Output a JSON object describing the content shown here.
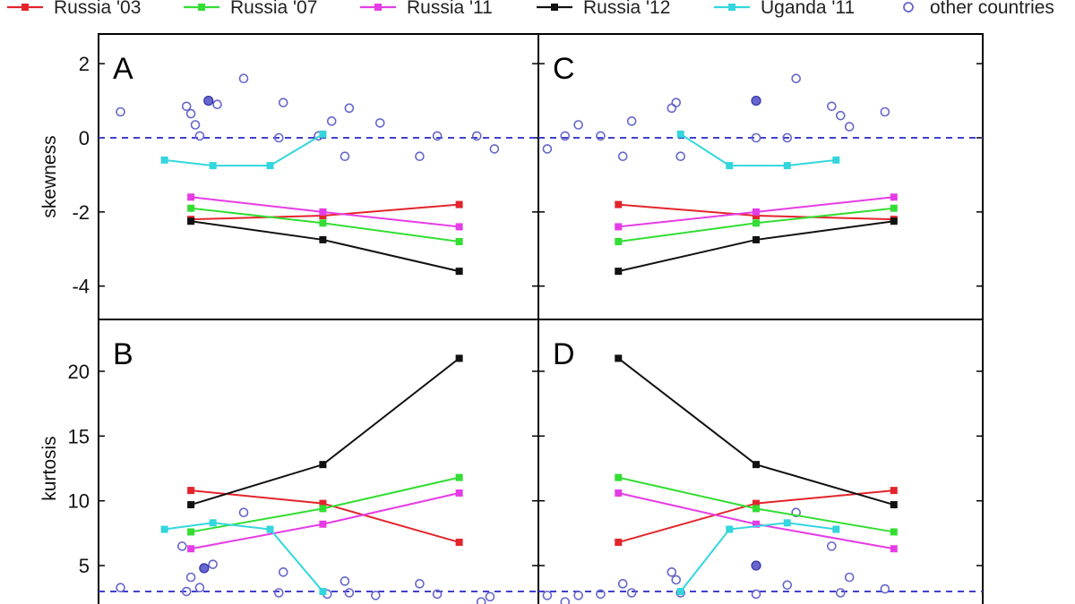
{
  "chart_data": {
    "type": "line",
    "legend": {
      "placement": "top",
      "entries": [
        {
          "label": "Russia '03",
          "color": "#e3242b",
          "marker": "filled-square"
        },
        {
          "label": "Russia '07",
          "color": "#33dd33",
          "marker": "filled-square"
        },
        {
          "label": "Russia '11",
          "color": "#e63ce6",
          "marker": "filled-square"
        },
        {
          "label": "Russia '12",
          "color": "#111111",
          "marker": "filled-square"
        },
        {
          "label": "Uganda '11",
          "color": "#33d6dd",
          "marker": "filled-square"
        },
        {
          "label": "other countries",
          "color": "#6666cc",
          "marker": "open-circle"
        }
      ]
    },
    "reference_line_color": "#4040cc",
    "panels": [
      {
        "letter": "A",
        "ylabel": "skewness",
        "ylim": [
          -4.9,
          2.8
        ],
        "ref_y": 0,
        "yticks": [
          -4,
          -2,
          0,
          2
        ],
        "ytick_labels": [
          "-4",
          "-2",
          "0",
          "2"
        ],
        "grid": false,
        "series": [
          {
            "name": "Russia '03",
            "color": "#e3242b",
            "points": [
              [
                0.21,
                -2.2
              ],
              [
                0.51,
                -2.1
              ],
              [
                0.82,
                -1.8
              ]
            ]
          },
          {
            "name": "Russia '07",
            "color": "#33dd33",
            "points": [
              [
                0.21,
                -1.9
              ],
              [
                0.51,
                -2.3
              ],
              [
                0.82,
                -2.8
              ]
            ]
          },
          {
            "name": "Russia '11",
            "color": "#e63ce6",
            "points": [
              [
                0.21,
                -1.6
              ],
              [
                0.51,
                -2.0
              ],
              [
                0.82,
                -2.4
              ]
            ]
          },
          {
            "name": "Russia '12",
            "color": "#111111",
            "points": [
              [
                0.21,
                -2.25
              ],
              [
                0.51,
                -2.75
              ],
              [
                0.82,
                -3.6
              ]
            ]
          },
          {
            "name": "Uganda '11",
            "color": "#33d6dd",
            "points": [
              [
                0.15,
                -0.6
              ],
              [
                0.26,
                -0.75
              ],
              [
                0.39,
                -0.75
              ],
              [
                0.51,
                0.1
              ]
            ]
          }
        ],
        "others": [
          [
            0.05,
            0.7
          ],
          [
            0.2,
            0.85
          ],
          [
            0.21,
            0.65
          ],
          [
            0.22,
            0.35
          ],
          [
            0.23,
            0.05
          ],
          [
            0.25,
            1.0
          ],
          [
            0.27,
            0.9
          ],
          [
            0.33,
            1.6
          ],
          [
            0.41,
            0.0
          ],
          [
            0.42,
            0.95
          ],
          [
            0.5,
            0.05
          ],
          [
            0.53,
            0.45
          ],
          [
            0.57,
            0.8
          ],
          [
            0.56,
            -0.5
          ],
          [
            0.64,
            0.4
          ],
          [
            0.73,
            -0.5
          ],
          [
            0.77,
            0.05
          ],
          [
            0.86,
            0.05
          ],
          [
            0.9,
            -0.3
          ]
        ],
        "others_filled": [
          [
            0.25,
            1.0
          ]
        ]
      },
      {
        "letter": "B",
        "ylabel": "kurtosis",
        "ylim": [
          1,
          24
        ],
        "ref_y": 3,
        "yticks": [
          5,
          10,
          15,
          20
        ],
        "ytick_labels": [
          "5",
          "10",
          "15",
          "20"
        ],
        "grid": false,
        "series": [
          {
            "name": "Russia '03",
            "color": "#e3242b",
            "points": [
              [
                0.21,
                10.8
              ],
              [
                0.51,
                9.8
              ],
              [
                0.82,
                6.8
              ]
            ]
          },
          {
            "name": "Russia '07",
            "color": "#33dd33",
            "points": [
              [
                0.21,
                7.6
              ],
              [
                0.51,
                9.4
              ],
              [
                0.82,
                11.8
              ]
            ]
          },
          {
            "name": "Russia '11",
            "color": "#e63ce6",
            "points": [
              [
                0.21,
                6.3
              ],
              [
                0.51,
                8.2
              ],
              [
                0.82,
                10.6
              ]
            ]
          },
          {
            "name": "Russia '12",
            "color": "#111111",
            "points": [
              [
                0.21,
                9.7
              ],
              [
                0.51,
                12.8
              ],
              [
                0.82,
                21.0
              ]
            ]
          },
          {
            "name": "Uganda '11",
            "color": "#33d6dd",
            "points": [
              [
                0.15,
                7.8
              ],
              [
                0.26,
                8.3
              ],
              [
                0.39,
                7.8
              ],
              [
                0.51,
                3.0
              ]
            ]
          }
        ],
        "others": [
          [
            0.05,
            3.3
          ],
          [
            0.19,
            6.5
          ],
          [
            0.2,
            3.0
          ],
          [
            0.21,
            4.1
          ],
          [
            0.23,
            3.3
          ],
          [
            0.24,
            4.8
          ],
          [
            0.26,
            5.1
          ],
          [
            0.33,
            9.1
          ],
          [
            0.41,
            2.9
          ],
          [
            0.42,
            4.5
          ],
          [
            0.52,
            2.8
          ],
          [
            0.56,
            3.8
          ],
          [
            0.57,
            2.9
          ],
          [
            0.63,
            2.7
          ],
          [
            0.73,
            3.6
          ],
          [
            0.77,
            2.8
          ],
          [
            0.87,
            2.2
          ],
          [
            0.89,
            2.6
          ]
        ],
        "others_filled": [
          [
            0.24,
            4.8
          ]
        ]
      },
      {
        "letter": "C",
        "ylabel": "",
        "ylim": [
          -4.9,
          2.8
        ],
        "ref_y": 0,
        "yticks": [
          -4,
          -2,
          0,
          2
        ],
        "ytick_labels": [],
        "grid": false,
        "series": [
          {
            "name": "Russia '03",
            "color": "#e3242b",
            "points": [
              [
                0.18,
                -1.8
              ],
              [
                0.49,
                -2.1
              ],
              [
                0.8,
                -2.2
              ]
            ]
          },
          {
            "name": "Russia '07",
            "color": "#33dd33",
            "points": [
              [
                0.18,
                -2.8
              ],
              [
                0.49,
                -2.3
              ],
              [
                0.8,
                -1.9
              ]
            ]
          },
          {
            "name": "Russia '11",
            "color": "#e63ce6",
            "points": [
              [
                0.18,
                -2.4
              ],
              [
                0.49,
                -2.0
              ],
              [
                0.8,
                -1.6
              ]
            ]
          },
          {
            "name": "Russia '12",
            "color": "#111111",
            "points": [
              [
                0.18,
                -3.6
              ],
              [
                0.49,
                -2.75
              ],
              [
                0.8,
                -2.25
              ]
            ]
          },
          {
            "name": "Uganda '11",
            "color": "#33d6dd",
            "points": [
              [
                0.32,
                0.1
              ],
              [
                0.43,
                -0.75
              ],
              [
                0.56,
                -0.75
              ],
              [
                0.67,
                -0.6
              ]
            ]
          }
        ],
        "others": [
          [
            0.02,
            -0.3
          ],
          [
            0.06,
            0.05
          ],
          [
            0.09,
            0.35
          ],
          [
            0.14,
            0.05
          ],
          [
            0.19,
            -0.5
          ],
          [
            0.21,
            0.45
          ],
          [
            0.3,
            0.8
          ],
          [
            0.31,
            0.95
          ],
          [
            0.32,
            -0.5
          ],
          [
            0.49,
            1.0
          ],
          [
            0.49,
            0.0
          ],
          [
            0.56,
            0.0
          ],
          [
            0.58,
            1.6
          ],
          [
            0.66,
            0.85
          ],
          [
            0.68,
            0.6
          ],
          [
            0.7,
            0.3
          ],
          [
            0.78,
            0.7
          ]
        ],
        "others_filled": [
          [
            0.49,
            1.0
          ]
        ]
      },
      {
        "letter": "D",
        "ylabel": "",
        "ylim": [
          1,
          24
        ],
        "ref_y": 3,
        "yticks": [
          5,
          10,
          15,
          20
        ],
        "ytick_labels": [],
        "grid": false,
        "series": [
          {
            "name": "Russia '03",
            "color": "#e3242b",
            "points": [
              [
                0.18,
                6.8
              ],
              [
                0.49,
                9.8
              ],
              [
                0.8,
                10.8
              ]
            ]
          },
          {
            "name": "Russia '07",
            "color": "#33dd33",
            "points": [
              [
                0.18,
                11.8
              ],
              [
                0.49,
                9.4
              ],
              [
                0.8,
                7.6
              ]
            ]
          },
          {
            "name": "Russia '11",
            "color": "#e63ce6",
            "points": [
              [
                0.18,
                10.6
              ],
              [
                0.49,
                8.2
              ],
              [
                0.8,
                6.3
              ]
            ]
          },
          {
            "name": "Russia '12",
            "color": "#111111",
            "points": [
              [
                0.18,
                21.0
              ],
              [
                0.49,
                12.8
              ],
              [
                0.8,
                9.7
              ]
            ]
          },
          {
            "name": "Uganda '11",
            "color": "#33d6dd",
            "points": [
              [
                0.32,
                3.0
              ],
              [
                0.43,
                7.8
              ],
              [
                0.56,
                8.3
              ],
              [
                0.67,
                7.8
              ]
            ]
          }
        ],
        "others": [
          [
            0.02,
            2.7
          ],
          [
            0.06,
            2.2
          ],
          [
            0.09,
            2.7
          ],
          [
            0.14,
            2.8
          ],
          [
            0.19,
            3.6
          ],
          [
            0.21,
            2.9
          ],
          [
            0.3,
            4.5
          ],
          [
            0.31,
            3.9
          ],
          [
            0.32,
            2.9
          ],
          [
            0.49,
            5.0
          ],
          [
            0.49,
            2.8
          ],
          [
            0.56,
            3.5
          ],
          [
            0.58,
            9.1
          ],
          [
            0.66,
            6.5
          ],
          [
            0.68,
            2.9
          ],
          [
            0.7,
            4.1
          ],
          [
            0.78,
            3.2
          ]
        ],
        "others_filled": [
          [
            0.49,
            5.0
          ]
        ]
      }
    ]
  }
}
